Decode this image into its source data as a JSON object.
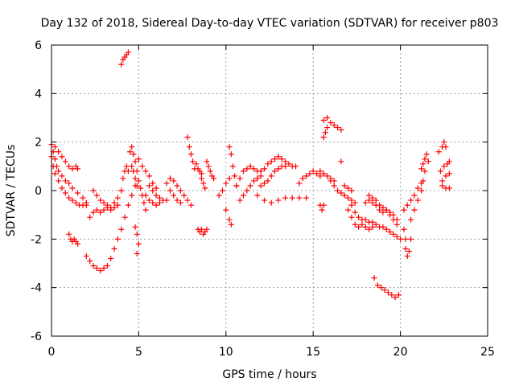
{
  "chart_data": {
    "type": "scatter",
    "title": "Day 132 of 2018, Sidereal Day-to-day VTEC variation (SDTVAR) for receiver p803",
    "xlabel": "GPS time / hours",
    "ylabel": "SDTVAR / TECUs",
    "xlim": [
      0,
      25
    ],
    "ylim": [
      -6,
      6
    ],
    "xticks": [
      0,
      5,
      10,
      15,
      20,
      25
    ],
    "yticks": [
      -6,
      -4,
      -2,
      0,
      2,
      4,
      6
    ],
    "grid": true,
    "marker": "+",
    "series_color": "#ff0000",
    "series": [
      {
        "name": "p803",
        "points": [
          [
            0.0,
            1.9
          ],
          [
            0.1,
            1.6
          ],
          [
            0.2,
            1.3
          ],
          [
            0.3,
            1.0
          ],
          [
            0.4,
            0.8
          ],
          [
            0.6,
            0.6
          ],
          [
            0.8,
            0.4
          ],
          [
            1.0,
            0.3
          ],
          [
            1.2,
            0.1
          ],
          [
            1.5,
            -0.1
          ],
          [
            1.8,
            -0.3
          ],
          [
            2.0,
            -0.5
          ],
          [
            0.0,
            1.4
          ],
          [
            0.1,
            1.0
          ],
          [
            0.2,
            0.7
          ],
          [
            0.4,
            0.4
          ],
          [
            0.6,
            0.1
          ],
          [
            0.8,
            -0.1
          ],
          [
            1.0,
            -0.3
          ],
          [
            1.2,
            -0.4
          ],
          [
            1.4,
            -0.5
          ],
          [
            1.6,
            -0.6
          ],
          [
            1.8,
            -0.6
          ],
          [
            2.0,
            -0.6
          ],
          [
            0.2,
            1.8
          ],
          [
            0.4,
            1.6
          ],
          [
            0.6,
            1.4
          ],
          [
            0.8,
            1.2
          ],
          [
            1.0,
            1.0
          ],
          [
            1.2,
            0.9
          ],
          [
            1.4,
            1.0
          ],
          [
            1.5,
            0.9
          ],
          [
            1.0,
            -1.8
          ],
          [
            1.1,
            -2.0
          ],
          [
            1.2,
            -2.1
          ],
          [
            1.3,
            -2.0
          ],
          [
            1.4,
            -2.1
          ],
          [
            1.5,
            -2.2
          ],
          [
            2.0,
            -2.7
          ],
          [
            2.2,
            -2.9
          ],
          [
            2.4,
            -3.1
          ],
          [
            2.6,
            -3.2
          ],
          [
            2.8,
            -3.3
          ],
          [
            3.0,
            -3.2
          ],
          [
            3.2,
            -3.1
          ],
          [
            3.4,
            -2.8
          ],
          [
            3.6,
            -2.4
          ],
          [
            3.8,
            -2.0
          ],
          [
            4.0,
            -1.6
          ],
          [
            4.2,
            -1.1
          ],
          [
            4.4,
            -0.6
          ],
          [
            4.6,
            -0.2
          ],
          [
            4.8,
            0.2
          ],
          [
            2.2,
            -1.1
          ],
          [
            2.4,
            -0.9
          ],
          [
            2.6,
            -0.8
          ],
          [
            2.8,
            -0.9
          ],
          [
            3.0,
            -0.8
          ],
          [
            3.2,
            -0.7
          ],
          [
            3.4,
            -0.8
          ],
          [
            3.6,
            -0.7
          ],
          [
            3.8,
            -0.6
          ],
          [
            2.4,
            0.0
          ],
          [
            2.6,
            -0.2
          ],
          [
            2.8,
            -0.4
          ],
          [
            3.0,
            -0.5
          ],
          [
            3.2,
            -0.6
          ],
          [
            3.4,
            -0.7
          ],
          [
            3.6,
            -0.5
          ],
          [
            3.8,
            -0.3
          ],
          [
            4.0,
            0.0
          ],
          [
            4.1,
            0.5
          ],
          [
            4.2,
            0.8
          ],
          [
            4.3,
            1.0
          ],
          [
            4.4,
            0.8
          ],
          [
            4.0,
            5.2
          ],
          [
            4.1,
            5.4
          ],
          [
            4.2,
            5.5
          ],
          [
            4.3,
            5.6
          ],
          [
            4.4,
            5.7
          ],
          [
            4.5,
            1.6
          ],
          [
            4.6,
            1.8
          ],
          [
            4.7,
            1.5
          ],
          [
            4.8,
            1.2
          ],
          [
            4.9,
            0.8
          ],
          [
            5.0,
            0.4
          ],
          [
            5.1,
            0.1
          ],
          [
            5.2,
            -0.2
          ],
          [
            5.3,
            -0.5
          ],
          [
            5.4,
            -0.8
          ],
          [
            4.6,
            1.0
          ],
          [
            4.7,
            0.8
          ],
          [
            4.8,
            0.5
          ],
          [
            4.9,
            0.2
          ],
          [
            4.8,
            -1.5
          ],
          [
            4.9,
            -1.8
          ],
          [
            5.0,
            -2.2
          ],
          [
            4.9,
            -2.6
          ],
          [
            5.0,
            1.3
          ],
          [
            5.2,
            1.0
          ],
          [
            5.4,
            0.8
          ],
          [
            5.6,
            0.6
          ],
          [
            5.8,
            0.3
          ],
          [
            6.0,
            0.1
          ],
          [
            5.4,
            -0.2
          ],
          [
            5.6,
            -0.4
          ],
          [
            5.8,
            -0.5
          ],
          [
            6.0,
            -0.6
          ],
          [
            6.2,
            -0.5
          ],
          [
            5.6,
            0.2
          ],
          [
            5.8,
            0.0
          ],
          [
            6.0,
            -0.2
          ],
          [
            6.2,
            -0.3
          ],
          [
            6.4,
            -0.4
          ],
          [
            6.6,
            -0.4
          ],
          [
            6.6,
            0.3
          ],
          [
            6.8,
            0.5
          ],
          [
            7.0,
            0.4
          ],
          [
            7.2,
            0.2
          ],
          [
            7.4,
            0.0
          ],
          [
            7.6,
            -0.2
          ],
          [
            7.8,
            -0.4
          ],
          [
            8.0,
            -0.6
          ],
          [
            6.8,
            0.0
          ],
          [
            7.0,
            -0.2
          ],
          [
            7.2,
            -0.4
          ],
          [
            7.4,
            -0.5
          ],
          [
            7.8,
            2.2
          ],
          [
            7.9,
            1.8
          ],
          [
            8.0,
            1.5
          ],
          [
            8.1,
            1.2
          ],
          [
            8.2,
            0.9
          ],
          [
            8.4,
            -1.6
          ],
          [
            8.5,
            -1.7
          ],
          [
            8.6,
            -1.6
          ],
          [
            8.7,
            -1.8
          ],
          [
            8.8,
            -1.7
          ],
          [
            8.9,
            -1.6
          ],
          [
            8.3,
            1.1
          ],
          [
            8.4,
            0.9
          ],
          [
            8.6,
            0.7
          ],
          [
            8.7,
            0.3
          ],
          [
            8.8,
            0.1
          ],
          [
            8.6,
            0.5
          ],
          [
            8.5,
            0.8
          ],
          [
            8.9,
            1.2
          ],
          [
            9.0,
            1.0
          ],
          [
            9.1,
            0.8
          ],
          [
            9.2,
            0.6
          ],
          [
            9.3,
            0.5
          ],
          [
            9.6,
            -0.2
          ],
          [
            9.8,
            0.0
          ],
          [
            10.0,
            0.3
          ],
          [
            10.2,
            0.5
          ],
          [
            10.0,
            -0.8
          ],
          [
            10.2,
            -1.2
          ],
          [
            10.3,
            -1.4
          ],
          [
            10.2,
            1.8
          ],
          [
            10.3,
            1.5
          ],
          [
            10.4,
            1.0
          ],
          [
            10.5,
            0.6
          ],
          [
            10.6,
            0.2
          ],
          [
            10.6,
            0.2
          ],
          [
            10.8,
            0.5
          ],
          [
            11.0,
            0.8
          ],
          [
            11.2,
            0.9
          ],
          [
            11.4,
            1.0
          ],
          [
            11.6,
            0.9
          ],
          [
            11.8,
            0.8
          ],
          [
            10.8,
            -0.4
          ],
          [
            11.0,
            -0.2
          ],
          [
            11.2,
            0.0
          ],
          [
            11.4,
            0.2
          ],
          [
            11.6,
            0.4
          ],
          [
            11.8,
            0.5
          ],
          [
            12.0,
            0.6
          ],
          [
            11.8,
            0.5
          ],
          [
            12.0,
            0.8
          ],
          [
            12.2,
            0.9
          ],
          [
            12.4,
            1.1
          ],
          [
            12.6,
            1.2
          ],
          [
            12.8,
            1.3
          ],
          [
            13.0,
            1.4
          ],
          [
            13.2,
            1.3
          ],
          [
            13.4,
            1.2
          ],
          [
            12.0,
            0.2
          ],
          [
            12.2,
            0.3
          ],
          [
            12.4,
            0.4
          ],
          [
            12.6,
            0.6
          ],
          [
            12.8,
            0.8
          ],
          [
            13.0,
            0.9
          ],
          [
            13.2,
            1.0
          ],
          [
            13.4,
            1.0
          ],
          [
            13.6,
            1.1
          ],
          [
            13.8,
            1.0
          ],
          [
            14.0,
            1.0
          ],
          [
            11.8,
            -0.2
          ],
          [
            12.2,
            -0.4
          ],
          [
            12.6,
            -0.5
          ],
          [
            13.0,
            -0.4
          ],
          [
            13.4,
            -0.3
          ],
          [
            13.8,
            -0.3
          ],
          [
            14.2,
            -0.3
          ],
          [
            14.6,
            -0.3
          ],
          [
            14.2,
            0.3
          ],
          [
            14.4,
            0.5
          ],
          [
            14.6,
            0.6
          ],
          [
            14.8,
            0.7
          ],
          [
            15.0,
            0.8
          ],
          [
            15.2,
            0.7
          ],
          [
            15.4,
            0.6
          ],
          [
            15.4,
            -0.6
          ],
          [
            15.5,
            -0.8
          ],
          [
            15.6,
            -0.6
          ],
          [
            15.4,
            0.8
          ],
          [
            15.6,
            0.7
          ],
          [
            15.8,
            0.6
          ],
          [
            16.0,
            0.5
          ],
          [
            16.2,
            0.4
          ],
          [
            15.6,
            2.2
          ],
          [
            15.7,
            2.4
          ],
          [
            15.8,
            2.6
          ],
          [
            15.6,
            2.9
          ],
          [
            15.8,
            3.0
          ],
          [
            16.0,
            2.8
          ],
          [
            16.2,
            2.7
          ],
          [
            16.4,
            2.6
          ],
          [
            16.6,
            2.5
          ],
          [
            16.6,
            1.2
          ],
          [
            16.0,
            0.4
          ],
          [
            16.2,
            0.2
          ],
          [
            16.4,
            0.0
          ],
          [
            16.6,
            -0.1
          ],
          [
            16.8,
            -0.2
          ],
          [
            17.0,
            -0.3
          ],
          [
            17.2,
            -0.4
          ],
          [
            17.4,
            -0.5
          ],
          [
            16.8,
            0.2
          ],
          [
            17.0,
            0.1
          ],
          [
            17.2,
            0.0
          ],
          [
            17.2,
            -0.6
          ],
          [
            17.4,
            -0.9
          ],
          [
            17.6,
            -1.1
          ],
          [
            17.8,
            -1.2
          ],
          [
            18.0,
            -1.2
          ],
          [
            18.2,
            -1.3
          ],
          [
            18.4,
            -1.3
          ],
          [
            18.6,
            -1.4
          ],
          [
            18.8,
            -1.5
          ],
          [
            19.0,
            -1.5
          ],
          [
            19.2,
            -1.6
          ],
          [
            19.4,
            -1.7
          ],
          [
            19.6,
            -1.8
          ],
          [
            19.8,
            -1.9
          ],
          [
            20.0,
            -2.0
          ],
          [
            18.0,
            -0.5
          ],
          [
            18.2,
            -0.4
          ],
          [
            18.4,
            -0.5
          ],
          [
            18.6,
            -0.6
          ],
          [
            18.8,
            -0.8
          ],
          [
            19.0,
            -0.9
          ],
          [
            19.2,
            -0.8
          ],
          [
            19.4,
            -0.9
          ],
          [
            19.6,
            -1.0
          ],
          [
            19.8,
            -1.2
          ],
          [
            18.2,
            -0.2
          ],
          [
            18.4,
            -0.3
          ],
          [
            18.6,
            -0.4
          ],
          [
            18.8,
            -0.6
          ],
          [
            19.0,
            -0.7
          ],
          [
            19.2,
            -0.8
          ],
          [
            19.4,
            -1.0
          ],
          [
            19.6,
            -1.2
          ],
          [
            19.8,
            -1.4
          ],
          [
            17.0,
            -0.8
          ],
          [
            17.2,
            -1.1
          ],
          [
            17.4,
            -1.4
          ],
          [
            17.6,
            -1.5
          ],
          [
            17.8,
            -1.4
          ],
          [
            18.0,
            -1.5
          ],
          [
            18.2,
            -1.6
          ],
          [
            18.4,
            -1.5
          ],
          [
            18.5,
            -3.6
          ],
          [
            18.7,
            -3.9
          ],
          [
            18.9,
            -4.0
          ],
          [
            19.1,
            -4.1
          ],
          [
            19.3,
            -4.2
          ],
          [
            19.5,
            -4.3
          ],
          [
            19.7,
            -4.4
          ],
          [
            19.9,
            -4.3
          ],
          [
            20.2,
            -1.6
          ],
          [
            20.3,
            -2.0
          ],
          [
            20.3,
            -2.4
          ],
          [
            20.4,
            -2.7
          ],
          [
            20.5,
            -2.5
          ],
          [
            20.6,
            -2.0
          ],
          [
            20.2,
            -0.8
          ],
          [
            20.4,
            -0.6
          ],
          [
            20.6,
            -0.4
          ],
          [
            20.8,
            -0.2
          ],
          [
            21.0,
            0.1
          ],
          [
            21.2,
            0.3
          ],
          [
            20.6,
            -1.2
          ],
          [
            20.8,
            -0.8
          ],
          [
            21.0,
            -0.4
          ],
          [
            21.2,
            0.0
          ],
          [
            21.3,
            0.4
          ],
          [
            21.4,
            0.8
          ],
          [
            21.2,
            0.9
          ],
          [
            21.3,
            1.1
          ],
          [
            21.4,
            1.3
          ],
          [
            21.5,
            1.5
          ],
          [
            21.6,
            1.2
          ],
          [
            22.2,
            1.6
          ],
          [
            22.4,
            1.8
          ],
          [
            22.5,
            2.0
          ],
          [
            22.6,
            1.8
          ],
          [
            22.3,
            0.8
          ],
          [
            22.5,
            1.0
          ],
          [
            22.7,
            1.1
          ],
          [
            22.8,
            1.2
          ],
          [
            22.4,
            0.4
          ],
          [
            22.6,
            0.6
          ],
          [
            22.8,
            0.7
          ],
          [
            22.4,
            0.2
          ],
          [
            22.6,
            0.1
          ],
          [
            22.8,
            0.1
          ]
        ]
      }
    ]
  }
}
